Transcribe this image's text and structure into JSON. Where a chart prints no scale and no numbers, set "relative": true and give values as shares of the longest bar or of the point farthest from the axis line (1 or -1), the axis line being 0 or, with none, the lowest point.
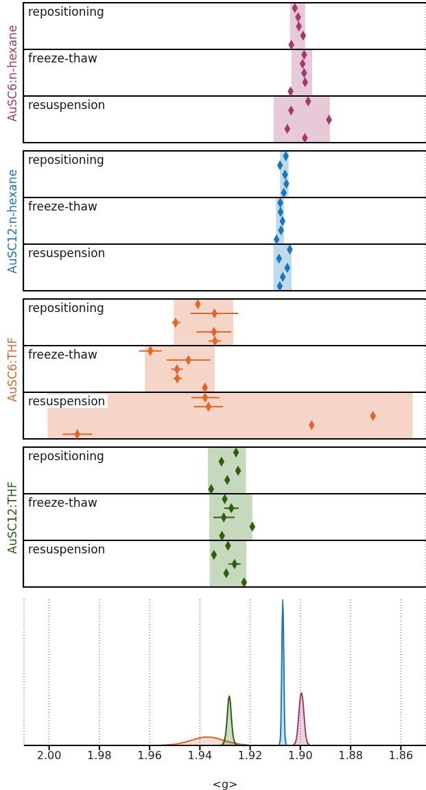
{
  "chart_data": [
    {
      "type": "scatter",
      "relative": true,
      "title": "repositioning",
      "x": [
        1.9022,
        1.9009,
        1.9006,
        1.8989,
        1.9036
      ],
      "values": [
        1,
        0.778,
        0.556,
        0.333,
        0.111
      ],
      "color": "#a33a6e",
      "marker": "diamond",
      "bands": [
        {
          "axis": "x",
          "from": 1.9041,
          "to": 1.8981,
          "color": "#e8c9d8"
        }
      ],
      "xlim": [
        2.01,
        1.85
      ],
      "xticks": [
        2,
        1.98,
        1.96,
        1.94,
        1.92,
        1.9,
        1.88,
        1.86
      ],
      "tick_labels": false,
      "grid": "x"
    },
    {
      "type": "scatter",
      "relative": true,
      "title": "freeze-thaw",
      "ylabel": "AuSC6:n-hexane",
      "x": [
        1.8985,
        1.8991,
        1.8985,
        1.8981,
        1.9039
      ],
      "values": [
        1,
        0.778,
        0.556,
        0.333,
        0.111
      ],
      "color": "#a33a6e",
      "marker": "diamond",
      "bands": [
        {
          "axis": "x",
          "from": 1.9036,
          "to": 1.8953,
          "color": "#e8c9d8"
        }
      ],
      "xlim": [
        2.01,
        1.85
      ],
      "xticks": [
        2,
        1.98,
        1.96,
        1.94,
        1.92,
        1.9,
        1.88,
        1.86
      ],
      "tick_labels": false,
      "grid": "x"
    },
    {
      "type": "scatter",
      "relative": true,
      "title": "resuspension",
      "x": [
        1.8969,
        1.9037,
        1.8886,
        1.9052,
        1.8982
      ],
      "values": [
        1,
        0.778,
        0.556,
        0.333,
        0.111
      ],
      "color": "#a33a6e",
      "marker": "diamond",
      "bands": [
        {
          "axis": "x",
          "from": 1.9106,
          "to": 1.8882,
          "color": "#e8c9d8"
        }
      ],
      "xlim": [
        2.01,
        1.85
      ],
      "xticks": [
        2,
        1.98,
        1.96,
        1.94,
        1.92,
        1.9,
        1.88,
        1.86
      ],
      "tick_labels": false,
      "grid": "x"
    },
    {
      "type": "scatter",
      "relative": true,
      "title": "repositioning",
      "x": [
        1.9058,
        1.9081,
        1.9061,
        1.9056,
        1.9066
      ],
      "values": [
        1,
        0.778,
        0.556,
        0.333,
        0.111
      ],
      "color": "#1b75bc",
      "marker": "diamond",
      "bands": [
        {
          "axis": "x",
          "from": 1.9081,
          "to": 1.9047,
          "color": "#bedbec"
        }
      ],
      "xlim": [
        2.01,
        1.85
      ],
      "xticks": [
        2,
        1.98,
        1.96,
        1.94,
        1.92,
        1.9,
        1.88,
        1.86
      ],
      "tick_labels": false,
      "grid": "x"
    },
    {
      "type": "scatter",
      "relative": true,
      "title": "freeze-thaw",
      "ylabel": "AuSC12:n-hexane",
      "x": [
        1.908,
        1.9079,
        1.9071,
        1.9077,
        1.9095
      ],
      "values": [
        1,
        0.778,
        0.556,
        0.333,
        0.111
      ],
      "color": "#1b75bc",
      "marker": "diamond",
      "bands": [
        {
          "axis": "x",
          "from": 1.9097,
          "to": 1.9065,
          "color": "#bedbec"
        }
      ],
      "xlim": [
        2.01,
        1.85
      ],
      "xticks": [
        2,
        1.98,
        1.96,
        1.94,
        1.92,
        1.9,
        1.88,
        1.86
      ],
      "tick_labels": false,
      "grid": "x"
    },
    {
      "type": "scatter",
      "relative": true,
      "title": "resuspension",
      "x": [
        1.9042,
        1.9085,
        1.9052,
        1.907,
        1.9082
      ],
      "values": [
        1,
        0.778,
        0.556,
        0.333,
        0.111
      ],
      "color": "#1b75bc",
      "marker": "diamond",
      "bands": [
        {
          "axis": "x",
          "from": 1.9107,
          "to": 1.9035,
          "color": "#bedbec"
        }
      ],
      "xlim": [
        2.01,
        1.85
      ],
      "xticks": [
        2,
        1.98,
        1.96,
        1.94,
        1.92,
        1.9,
        1.88,
        1.86
      ],
      "tick_labels": false,
      "grid": "x"
    },
    {
      "type": "scatter",
      "relative": true,
      "title": "repositioning",
      "x": [
        1.9408,
        1.9342,
        1.9497,
        1.9344,
        1.934
      ],
      "values": [
        1,
        0.778,
        0.556,
        0.333,
        0.111
      ],
      "xerrors": [
        null,
        [
          1.9247,
          1.9437
        ],
        [
          1.9478,
          1.9512
        ],
        [
          1.9275,
          1.9414
        ],
        [
          1.9316,
          1.9365
        ]
      ],
      "color": "#e0662a",
      "marker": "diamond",
      "bands": [
        {
          "axis": "x",
          "from": 1.9504,
          "to": 1.9267,
          "color": "#f5d5c7"
        }
      ],
      "xlim": [
        2.01,
        1.85
      ],
      "xticks": [
        2,
        1.98,
        1.96,
        1.94,
        1.92,
        1.9,
        1.88,
        1.86
      ],
      "tick_labels": false,
      "grid": "x"
    },
    {
      "type": "scatter",
      "relative": true,
      "title": "freeze-thaw",
      "ylabel": "AuSC6:THF",
      "x": [
        1.9597,
        1.9446,
        1.9491,
        1.949,
        1.938
      ],
      "values": [
        1,
        0.778,
        0.556,
        0.333,
        0.111
      ],
      "xerrors": [
        [
          1.9552,
          1.9642
        ],
        [
          1.9359,
          1.9532
        ],
        [
          1.9468,
          1.9514
        ],
        [
          1.9471,
          1.9506
        ],
        null
      ],
      "color": "#e0662a",
      "marker": "diamond",
      "bands": [
        {
          "axis": "x",
          "from": 1.9619,
          "to": 1.9341,
          "color": "#f5d5c7"
        }
      ],
      "xlim": [
        2.01,
        1.85
      ],
      "xticks": [
        2,
        1.98,
        1.96,
        1.94,
        1.92,
        1.9,
        1.88,
        1.86
      ],
      "tick_labels": false,
      "grid": "x"
    },
    {
      "type": "scatter",
      "relative": true,
      "title": "resuspension",
      "x": [
        1.9379,
        1.9366,
        1.8711,
        1.8955,
        1.9888
      ],
      "values": [
        1,
        0.778,
        0.556,
        0.333,
        0.111
      ],
      "xerrors": [
        [
          1.9322,
          1.9434
        ],
        [
          1.9308,
          1.9423
        ],
        null,
        null,
        [
          1.9829,
          1.9946
        ]
      ],
      "color": "#e0662a",
      "marker": "diamond",
      "bands": [
        {
          "axis": "x",
          "from": 2.0006,
          "to": 1.8553,
          "color": "#f5d5c7"
        }
      ],
      "xlim": [
        2.01,
        1.85
      ],
      "xticks": [
        2,
        1.98,
        1.96,
        1.94,
        1.92,
        1.9,
        1.88,
        1.86
      ],
      "tick_labels": false,
      "grid": "x"
    },
    {
      "type": "scatter",
      "relative": true,
      "title": "repositioning",
      "x": [
        1.9256,
        1.9314,
        1.9248,
        1.9291,
        1.9355
      ],
      "values": [
        1,
        0.778,
        0.556,
        0.333,
        0.111
      ],
      "color": "#2b5e0e",
      "marker": "diamond",
      "bands": [
        {
          "axis": "x",
          "from": 1.9368,
          "to": 1.9217,
          "color": "#c6d9bd"
        }
      ],
      "xlim": [
        2.01,
        1.85
      ],
      "xticks": [
        2,
        1.98,
        1.96,
        1.94,
        1.92,
        1.9,
        1.88,
        1.86
      ],
      "tick_labels": false,
      "grid": "x"
    },
    {
      "type": "scatter",
      "relative": true,
      "title": "freeze-thaw",
      "ylabel": "AuSC12:THF",
      "x": [
        1.9301,
        1.9275,
        1.9305,
        1.9191,
        1.9312
      ],
      "values": [
        1,
        0.778,
        0.556,
        0.333,
        0.111
      ],
      "xerrors": [
        null,
        [
          1.9246,
          1.9303
        ],
        [
          1.9262,
          1.9346
        ],
        null,
        null
      ],
      "color": "#2b5e0e",
      "marker": "diamond",
      "bands": [
        {
          "axis": "x",
          "from": 1.9363,
          "to": 1.9191,
          "color": "#c6d9bd"
        }
      ],
      "xlim": [
        2.01,
        1.85
      ],
      "xticks": [
        2,
        1.98,
        1.96,
        1.94,
        1.92,
        1.9,
        1.88,
        1.86
      ],
      "tick_labels": false,
      "grid": "x"
    },
    {
      "type": "scatter",
      "relative": true,
      "title": "resuspension",
      "x": [
        1.9288,
        1.9344,
        1.9262,
        1.9295,
        1.9224
      ],
      "values": [
        1,
        0.778,
        0.556,
        0.333,
        0.111
      ],
      "xerrors": [
        null,
        null,
        [
          1.9238,
          1.9286
        ],
        null,
        null
      ],
      "color": "#2b5e0e",
      "marker": "diamond",
      "bands": [
        {
          "axis": "x",
          "from": 1.9361,
          "to": 1.9215,
          "color": "#c6d9bd"
        }
      ],
      "xlim": [
        2.01,
        1.85
      ],
      "xticks": [
        2,
        1.98,
        1.96,
        1.94,
        1.92,
        1.9,
        1.88,
        1.86
      ],
      "tick_labels": false,
      "grid": "x"
    },
    {
      "type": "area",
      "relative": true,
      "xlabel": "<g>",
      "xlim": [
        2.01,
        1.85
      ],
      "xticks": [
        {
          "value": 2,
          "label": "2.00"
        },
        1.98,
        1.96,
        1.94,
        1.92,
        {
          "value": 1.9,
          "label": "1.90"
        },
        1.88,
        1.86
      ],
      "grid": "x",
      "series": [
        {
          "color": "#e0662a",
          "x": [
            1.956,
            1.95,
            1.946,
            1.943,
            1.94,
            1.9373,
            1.934,
            1.931,
            1.928,
            1.924,
            1.92
          ],
          "values": [
            0,
            0.008,
            0.022,
            0.037,
            0.052,
            0.058,
            0.052,
            0.037,
            0.022,
            0.008,
            0
          ]
        },
        {
          "color": "#2b5e0e",
          "x": [
            1.9315,
            1.9305,
            1.9298,
            1.9291,
            1.9287,
            1.9283,
            1.9279,
            1.9275,
            1.9268,
            1.9261,
            1.9251
          ],
          "values": [
            0,
            0.02,
            0.07,
            0.2,
            0.3,
            0.338,
            0.3,
            0.2,
            0.07,
            0.02,
            0
          ]
        },
        {
          "color": "#1b75bc",
          "x": [
            1.9085,
            1.908,
            1.9076,
            1.9073,
            1.907,
            1.9067,
            1.9064,
            1.906,
            1.9055
          ],
          "values": [
            0,
            0.04,
            0.3,
            0.75,
            1,
            0.75,
            0.3,
            0.04,
            0
          ]
        },
        {
          "color": "#a33a6e",
          "x": [
            1.903,
            1.902,
            1.9013,
            1.9006,
            1.9001,
            1.8996,
            1.8991,
            1.8986,
            1.8979,
            1.8972,
            1.8962
          ],
          "values": [
            0,
            0.02,
            0.08,
            0.22,
            0.32,
            0.36,
            0.32,
            0.22,
            0.08,
            0.02,
            0
          ]
        }
      ]
    }
  ]
}
